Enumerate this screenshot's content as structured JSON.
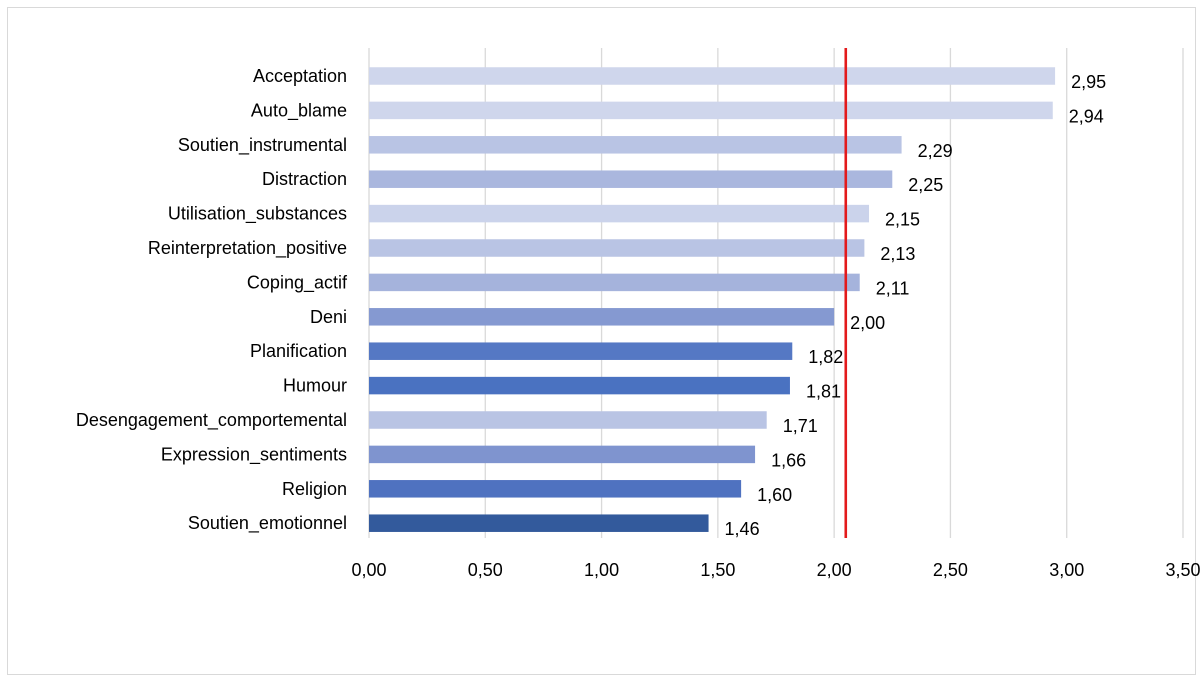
{
  "chart_data": {
    "type": "bar",
    "orientation": "horizontal",
    "categories": [
      "Acceptation",
      "Auto_blame",
      "Soutien_instrumental",
      "Distraction",
      "Utilisation_substances",
      "Reinterpretation_positive",
      "Coping_actif",
      "Deni",
      "Planification",
      "Humour",
      "Desengagement_comportemental",
      "Expression_sentiments",
      "Religion",
      "Soutien_emotionnel"
    ],
    "values": [
      2.95,
      2.94,
      2.29,
      2.25,
      2.15,
      2.13,
      2.11,
      2.0,
      1.82,
      1.81,
      1.71,
      1.66,
      1.6,
      1.46
    ],
    "value_labels": [
      "2,95",
      "2,94",
      "2,29",
      "2,25",
      "2,15",
      "2,13",
      "2,11",
      "2,00",
      "1,82",
      "1,81",
      "1,71",
      "1,66",
      "1,60",
      "1,46"
    ],
    "bar_colors": [
      "#cfd6ec",
      "#cfd6ec",
      "#b9c4e4",
      "#aab7de",
      "#cbd3eb",
      "#b9c4e4",
      "#a5b3dc",
      "#8599d1",
      "#5578c4",
      "#4a72c1",
      "#b9c4e4",
      "#7f94cf",
      "#4f72c0",
      "#335a9c"
    ],
    "xlim": [
      0,
      3.5
    ],
    "xticks": [
      0,
      0.5,
      1.0,
      1.5,
      2.0,
      2.5,
      3.0,
      3.5
    ],
    "xtick_labels": [
      "0,00",
      "0,50",
      "1,00",
      "1,50",
      "2,00",
      "2,50",
      "3,00",
      "3,50"
    ],
    "reference_line": {
      "value": 2.05,
      "color": "#e31a1c"
    },
    "grid": true,
    "title": "",
    "xlabel": "",
    "ylabel": ""
  }
}
